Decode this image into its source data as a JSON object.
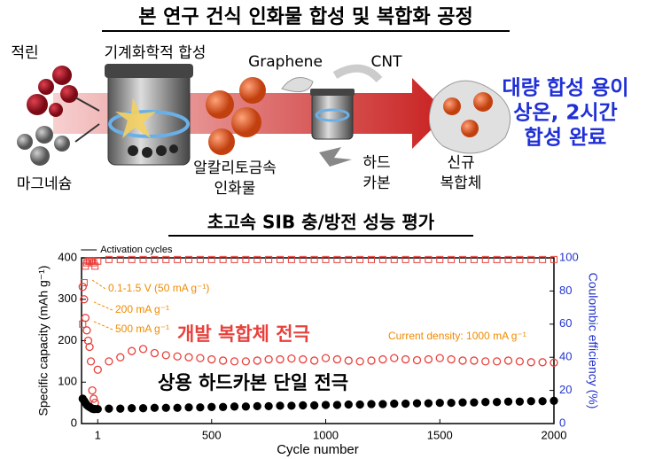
{
  "diagram": {
    "title": "본 연구 건식 인화물 합성 및 복합화 공정",
    "reactants": [
      "적린",
      "마그네슘"
    ],
    "process": "기계화학적 합성",
    "intermediate": [
      "알칼리토금속",
      "인화물"
    ],
    "additives": [
      "Graphene",
      "CNT"
    ],
    "carbon": [
      "하드",
      "카본"
    ],
    "product": [
      "신규",
      "복합체"
    ],
    "highlights": [
      "대량 합성 용이",
      "상온, 2시간",
      "합성 완료"
    ]
  },
  "chart_data": {
    "type": "scatter",
    "title": "초고속 SIB 충/방전 성능 평가",
    "x_label": "Cycle number",
    "y_label": "Specific capacity (mAh g⁻¹)",
    "y2_label": "Coulombic efficiency (%)",
    "activation_label": "Activation cycles",
    "annotations": [
      "0.1-1.5 V (50 mA g⁻¹)",
      "200 mA g⁻¹",
      "500 mA g⁻¹",
      "Current density: 1000 mA g⁻¹"
    ],
    "annotation_color": "#f08a00",
    "xlim": [
      -70,
      2000
    ],
    "xticks": [
      1,
      500,
      1000,
      1500,
      2000
    ],
    "ylim": [
      0,
      400
    ],
    "yticks": [
      0,
      100,
      200,
      300,
      400
    ],
    "y2lim": [
      0,
      100
    ],
    "y2ticks": [
      0,
      20,
      40,
      60,
      80,
      100
    ],
    "y2_color": "#2233cc",
    "x": [
      -65,
      -59,
      -53,
      -47,
      -41,
      -35,
      -29,
      -23,
      -17,
      -11,
      1,
      50,
      100,
      150,
      200,
      250,
      300,
      350,
      400,
      450,
      500,
      550,
      600,
      650,
      700,
      750,
      800,
      850,
      900,
      950,
      1000,
      1050,
      1100,
      1150,
      1200,
      1250,
      1300,
      1350,
      1400,
      1450,
      1500,
      1550,
      1600,
      1650,
      1700,
      1750,
      1800,
      1850,
      1900,
      1950,
      2000
    ],
    "series": [
      {
        "name": "개발 복합체 전극",
        "color": "#e8413c",
        "marker": "open-circle",
        "values": [
          330,
          300,
          255,
          225,
          200,
          185,
          150,
          80,
          60,
          50,
          130,
          150,
          160,
          175,
          180,
          170,
          165,
          162,
          160,
          158,
          155,
          152,
          150,
          150,
          152,
          155,
          155,
          157,
          155,
          152,
          158,
          155,
          152,
          150,
          152,
          155,
          158,
          155,
          153,
          155,
          158,
          155,
          152,
          152,
          150,
          150,
          152,
          150,
          148,
          148,
          147
        ]
      },
      {
        "name": "상용 하드카본 단일 전극",
        "color": "#000000",
        "marker": "filled-circle",
        "values": [
          60,
          55,
          50,
          45,
          42,
          40,
          38,
          36,
          35,
          35,
          35,
          36,
          36,
          37,
          37,
          38,
          38,
          38,
          39,
          39,
          40,
          40,
          41,
          41,
          42,
          42,
          43,
          43,
          44,
          44,
          45,
          45,
          46,
          46,
          47,
          47,
          48,
          48,
          49,
          49,
          50,
          50,
          51,
          51,
          52,
          52,
          53,
          53,
          54,
          54,
          55
        ]
      },
      {
        "color": "#e8413c",
        "marker": "open-square",
        "axis": "y2",
        "values": [
          60,
          85,
          95,
          97,
          98,
          98,
          98,
          98,
          97,
          95,
          98,
          99,
          99,
          99,
          99,
          99,
          99,
          99,
          99,
          99,
          99,
          99,
          99,
          99,
          99,
          99,
          99,
          99,
          99,
          99,
          99,
          99,
          99,
          99,
          99,
          99,
          99,
          99,
          99,
          99,
          99,
          99,
          99,
          99,
          99,
          99,
          99,
          99,
          99,
          99,
          99
        ]
      }
    ]
  }
}
